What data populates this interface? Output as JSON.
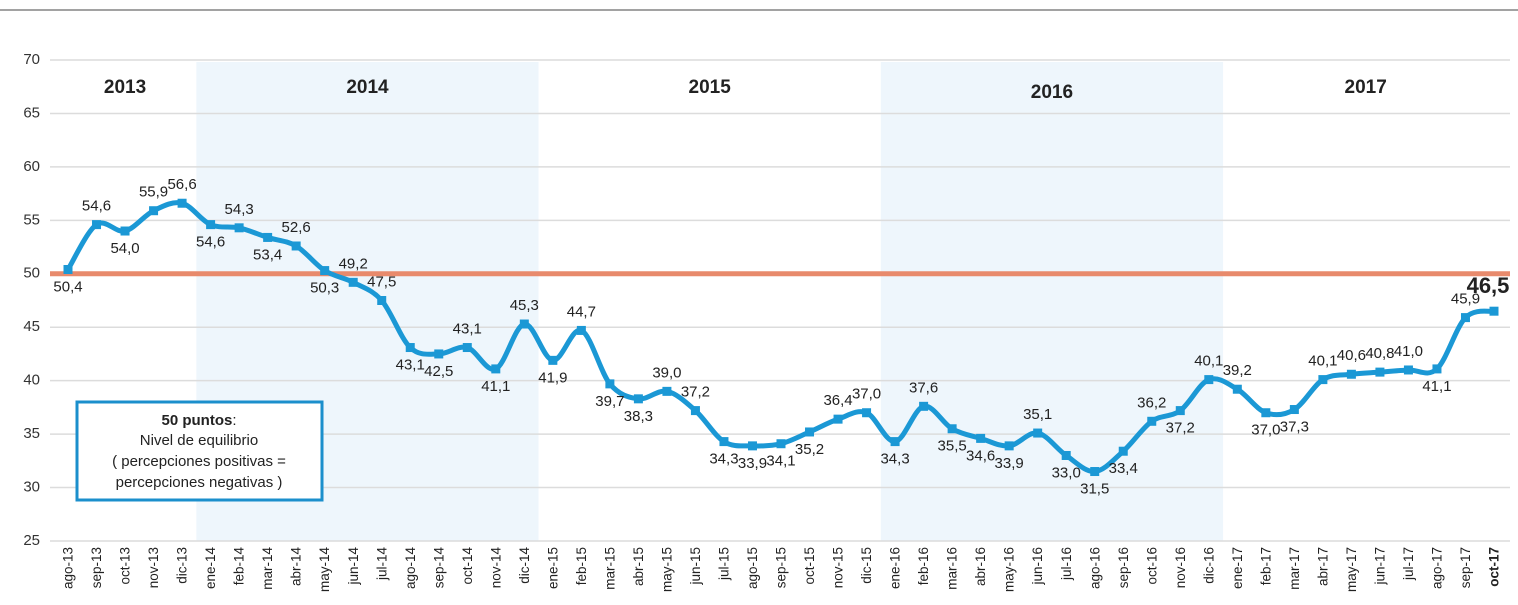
{
  "chart_data": {
    "type": "line",
    "categories": [
      "ago-13",
      "sep-13",
      "oct-13",
      "nov-13",
      "dic-13",
      "ene-14",
      "feb-14",
      "mar-14",
      "abr-14",
      "may-14",
      "jun-14",
      "jul-14",
      "ago-14",
      "sep-14",
      "oct-14",
      "nov-14",
      "dic-14",
      "ene-15",
      "feb-15",
      "mar-15",
      "abr-15",
      "may-15",
      "jun-15",
      "jul-15",
      "ago-15",
      "sep-15",
      "oct-15",
      "nov-15",
      "dic-15",
      "ene-16",
      "feb-16",
      "mar-16",
      "abr-16",
      "may-16",
      "jun-16",
      "jul-16",
      "ago-16",
      "sep-16",
      "oct-16",
      "nov-16",
      "dic-16",
      "ene-17",
      "feb-17",
      "mar-17",
      "abr-17",
      "may-17",
      "jun-17",
      "jul-17",
      "ago-17",
      "sep-17",
      "oct-17"
    ],
    "values": [
      50.4,
      54.6,
      54.0,
      55.9,
      56.6,
      54.6,
      54.3,
      53.4,
      52.6,
      50.3,
      49.2,
      47.5,
      43.1,
      42.5,
      43.1,
      41.1,
      45.3,
      41.9,
      44.7,
      39.7,
      38.3,
      39.0,
      37.2,
      34.3,
      33.9,
      34.1,
      35.2,
      36.4,
      37.0,
      34.3,
      37.6,
      35.5,
      34.6,
      33.9,
      35.1,
      33.0,
      31.5,
      33.4,
      36.2,
      37.2,
      40.1,
      39.2,
      37.0,
      37.3,
      40.1,
      40.6,
      40.8,
      41.0,
      41.1,
      45.9,
      46.5
    ],
    "value_labels": [
      "50,4",
      "54,6",
      "54,0",
      "55,9",
      "56,6",
      "54,6",
      "54,3",
      "53,4",
      "52,6",
      "50,3",
      "49,2",
      "47,5",
      "43,1",
      "42,5",
      "43,1",
      "41,1",
      "45,3",
      "41,9",
      "44,7",
      "39,7",
      "38,3",
      "39,0",
      "37,2",
      "34,3",
      "33,9",
      "34,1",
      "35,2",
      "36,4",
      "37,0",
      "34,3",
      "37,6",
      "35,5",
      "34,6",
      "33,9",
      "35,1",
      "33,0",
      "31,5",
      "33,4",
      "36,2",
      "37,2",
      "40,1",
      "39,2",
      "37,0",
      "37,3",
      "40,1",
      "40,6",
      "40,8",
      "41,0",
      "41,1",
      "45,9",
      "46,5"
    ],
    "color": "#1b98d5",
    "ylim": [
      25,
      70
    ],
    "yticks": [
      25,
      30,
      35,
      40,
      45,
      50,
      55,
      60,
      65,
      70
    ],
    "grid": true,
    "reference_line": {
      "value": 50,
      "color": "#e88a6c"
    },
    "year_bands": [
      {
        "label": "2013",
        "from": "ago-13",
        "to": "dic-13",
        "shaded": false
      },
      {
        "label": "2014",
        "from": "ene-14",
        "to": "dic-14",
        "shaded": true
      },
      {
        "label": "2015",
        "from": "ene-15",
        "to": "dic-15",
        "shaded": false
      },
      {
        "label": "2016",
        "from": "ene-16",
        "to": "dic-16",
        "shaded": true
      },
      {
        "label": "2017",
        "from": "ene-17",
        "to": "oct-17",
        "shaded": false
      }
    ],
    "annotation": {
      "title": "50 puntos",
      "title_suffix": ":",
      "lines": [
        "Nivel de equilibrio",
        "( percepciones positivas =",
        "percepciones negativas )"
      ]
    }
  }
}
